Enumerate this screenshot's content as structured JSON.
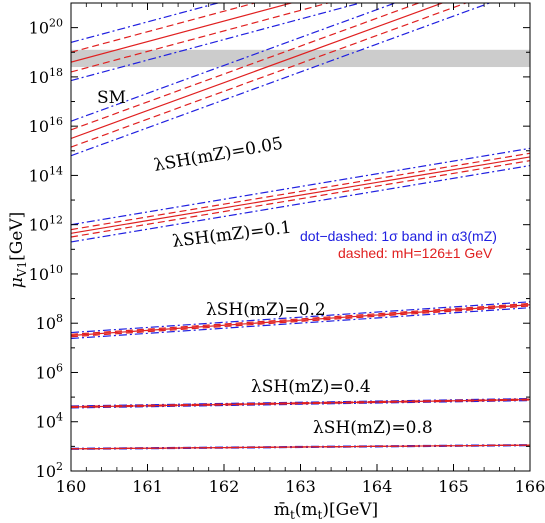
{
  "chart_data": {
    "type": "line",
    "xlabel": "m̄t(mt)[GeV]",
    "ylabel": "μV1[GeV]",
    "xlim": [
      160,
      166
    ],
    "ylim_log10": [
      2,
      21
    ],
    "x_ticks": [
      160,
      161,
      162,
      163,
      164,
      165,
      166
    ],
    "y_ticks": [
      {
        "exp": 2,
        "label": "10",
        "sup": "2"
      },
      {
        "exp": 4,
        "label": "10",
        "sup": "4"
      },
      {
        "exp": 6,
        "label": "10",
        "sup": "6"
      },
      {
        "exp": 8,
        "label": "10",
        "sup": "8"
      },
      {
        "exp": 10,
        "label": "10",
        "sup": "10"
      },
      {
        "exp": 12,
        "label": "10",
        "sup": "12"
      },
      {
        "exp": 14,
        "label": "10",
        "sup": "14"
      },
      {
        "exp": 16,
        "label": "10",
        "sup": "16"
      },
      {
        "exp": 18,
        "label": "10",
        "sup": "18"
      },
      {
        "exp": 20,
        "label": "10",
        "sup": "20"
      }
    ],
    "sm_band": {
      "label": "SM",
      "log10_range": [
        18.4,
        19.1
      ]
    },
    "legend": [
      {
        "text": "dot−dashed: 1σ band in α3(mZ)",
        "color": "#2020e0"
      },
      {
        "text": "dashed: mH=126±1 GeV",
        "color": "#e02020"
      }
    ],
    "colors": {
      "red": "#e02020",
      "blue": "#2020e0",
      "band": "#cccccc"
    },
    "groups": [
      {
        "annotation": "λSH(mZ)=",
        "value_label": "0",
        "x": [
          160,
          166
        ],
        "central_log10": [
          18.6,
          23.6
        ],
        "red_dashed_log10": [
          [
            18.2,
            23.2
          ],
          [
            19.0,
            24.0
          ]
        ],
        "blue_dotdash_log10": [
          [
            17.85,
            22.85
          ],
          [
            19.4,
            24.4
          ]
        ]
      },
      {
        "annotation": "λSH(mZ)=0.05",
        "value_label": "0.05",
        "x": [
          160,
          166
        ],
        "central_log10": [
          15.5,
          22.3
        ],
        "red_dashed_log10": [
          [
            15.15,
            21.95
          ],
          [
            15.85,
            22.65
          ]
        ],
        "blue_dotdash_log10": [
          [
            14.8,
            21.6
          ],
          [
            16.2,
            23.0
          ]
        ]
      },
      {
        "annotation": "λSH(mZ)=0.1",
        "value_label": "0.1",
        "x": [
          160,
          166
        ],
        "central_log10": [
          11.65,
          14.75
        ],
        "red_dashed_log10": [
          [
            11.5,
            14.6
          ],
          [
            11.8,
            14.9
          ]
        ],
        "blue_dotdash_log10": [
          [
            11.3,
            14.4
          ],
          [
            12.0,
            15.1
          ]
        ]
      },
      {
        "annotation": "λSH(mZ)=0.2",
        "value_label": "0.2",
        "x": [
          160,
          166
        ],
        "central_log10": [
          7.5,
          8.75
        ],
        "red_dashed_log10": [
          [
            7.45,
            8.7
          ],
          [
            7.55,
            8.8
          ]
        ],
        "blue_dotdash_log10": [
          [
            7.38,
            8.63
          ],
          [
            7.62,
            8.87
          ]
        ]
      },
      {
        "annotation": "λSH(mZ)=0.4",
        "value_label": "0.4",
        "x": [
          160,
          166
        ],
        "central_log10": [
          4.6,
          4.9
        ],
        "red_dashed_log10": [
          [
            4.58,
            4.88
          ],
          [
            4.62,
            4.92
          ]
        ],
        "blue_dotdash_log10": [
          [
            4.56,
            4.86
          ],
          [
            4.64,
            4.94
          ]
        ]
      },
      {
        "annotation": "λSH(mZ)=0.8",
        "value_label": "0.8",
        "x": [
          160,
          166
        ],
        "central_log10": [
          2.9,
          3.05
        ],
        "red_dashed_log10": [
          [
            2.9,
            3.05
          ],
          [
            2.9,
            3.05
          ]
        ],
        "blue_dotdash_log10": [
          [
            2.88,
            3.03
          ],
          [
            2.92,
            3.07
          ]
        ]
      }
    ],
    "labels": [
      {
        "text": "λSH(mZ)=0.05"
      },
      {
        "text": "λSH(mZ)=0.1"
      },
      {
        "text": "λSH(mZ)=0.2"
      },
      {
        "text": "λSH(mZ)=0.4"
      },
      {
        "text": "λSH(mZ)=0.8"
      }
    ]
  }
}
